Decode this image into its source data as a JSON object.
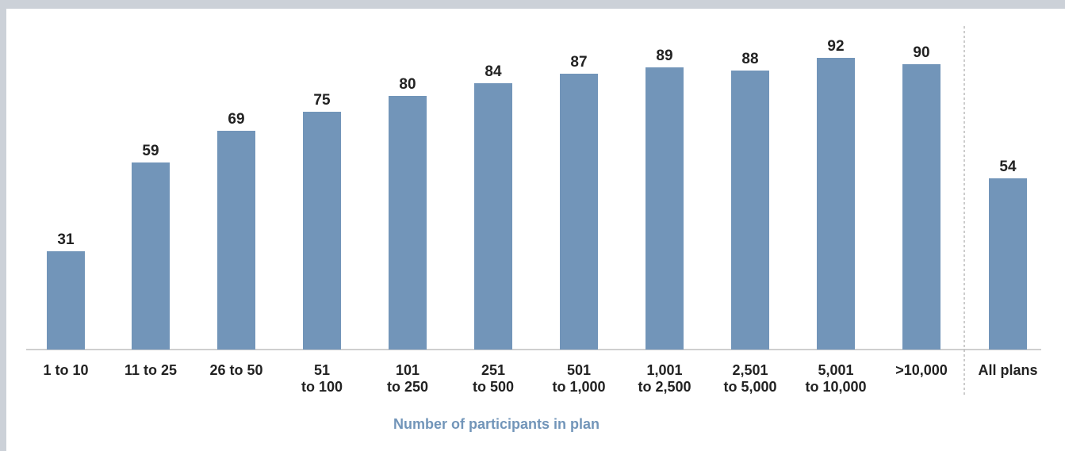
{
  "chart_data": {
    "type": "bar",
    "categories": [
      [
        "1 to 10"
      ],
      [
        "11 to 25"
      ],
      [
        "26 to 50"
      ],
      [
        "51",
        "to 100"
      ],
      [
        "101",
        "to 250"
      ],
      [
        "251",
        "to 500"
      ],
      [
        "501",
        "to 1,000"
      ],
      [
        "1,001",
        "to 2,500"
      ],
      [
        "2,501",
        "to 5,000"
      ],
      [
        "5,001",
        "to 10,000"
      ],
      [
        ">10,000"
      ],
      [
        "All plans"
      ]
    ],
    "values": [
      31,
      59,
      69,
      75,
      80,
      84,
      87,
      89,
      88,
      92,
      90,
      54
    ],
    "value_labels": [
      "31",
      "59",
      "69",
      "75",
      "80",
      "84",
      "87",
      "89",
      "88",
      "92",
      "90",
      "54"
    ],
    "xlabel": "Number of participants in plan",
    "ylabel": "",
    "ylim": [
      0,
      100
    ],
    "grid": false,
    "legend": "none",
    "separator_before_category": "All plans",
    "colors": {
      "bar": "#7295b9",
      "axis_title": "#7295b9",
      "text": "#222222",
      "background": "#ccd1d8"
    }
  }
}
